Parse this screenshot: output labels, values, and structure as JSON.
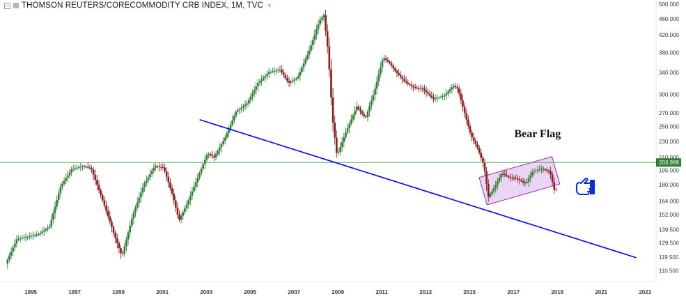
{
  "header": {
    "title": "THOMSON REUTERS/CORECOMMODITY CRB INDEX, 1M, TVC",
    "collapse_icon": "minus-square-icon",
    "visibility_icon": "eye-square-icon",
    "menu_icon": "chevron-down-icon"
  },
  "colors": {
    "up": "#2e7d32",
    "down": "#8b1a1a",
    "trendline": "#0000ff",
    "horizontal_line": "#4caf50",
    "flag_fill": "#e3c7f2",
    "flag_border": "#9c27b0",
    "price_label_bg": "#2e7d32"
  },
  "chart_data": {
    "type": "candlestick",
    "title": "THOMSON REUTERS/CORECOMMODITY CRB INDEX, 1M, TVC",
    "interval": "1M",
    "y_scale": "log",
    "ylim": [
      104,
      500
    ],
    "xlim": [
      1993.7,
      2023.6
    ],
    "y_ticks": [
      "500.000",
      "460.000",
      "420.000",
      "380.000",
      "340.000",
      "300.000",
      "270.000",
      "250.000",
      "230.000",
      "210.000",
      "195.000",
      "180.000",
      "164.000",
      "152.000",
      "139.500",
      "129.500",
      "119.500",
      "110.500"
    ],
    "x_ticks": [
      "1995",
      "1997",
      "1999",
      "2001",
      "2003",
      "2005",
      "2007",
      "2009",
      "2011",
      "2013",
      "2015",
      "2017",
      "2019",
      "2021",
      "2023"
    ],
    "anchors": [
      [
        1994.0,
        115
      ],
      [
        1994.5,
        132
      ],
      [
        1995.0,
        134
      ],
      [
        1995.5,
        136
      ],
      [
        1996.0,
        142
      ],
      [
        1996.5,
        178
      ],
      [
        1997.0,
        196
      ],
      [
        1997.5,
        200
      ],
      [
        1997.9,
        197
      ],
      [
        1998.5,
        160
      ],
      [
        1999.0,
        133
      ],
      [
        1999.3,
        120
      ],
      [
        1999.8,
        152
      ],
      [
        2000.3,
        180
      ],
      [
        2000.8,
        200
      ],
      [
        2001.2,
        198
      ],
      [
        2001.6,
        170
      ],
      [
        2001.9,
        147
      ],
      [
        2002.3,
        163
      ],
      [
        2002.8,
        190
      ],
      [
        2003.2,
        215
      ],
      [
        2003.5,
        210
      ],
      [
        2004.0,
        235
      ],
      [
        2004.5,
        272
      ],
      [
        2005.0,
        285
      ],
      [
        2005.5,
        320
      ],
      [
        2006.0,
        340
      ],
      [
        2006.5,
        345
      ],
      [
        2006.9,
        320
      ],
      [
        2007.3,
        330
      ],
      [
        2007.8,
        380
      ],
      [
        2008.3,
        455
      ],
      [
        2008.5,
        470
      ],
      [
        2008.7,
        380
      ],
      [
        2008.9,
        260
      ],
      [
        2009.1,
        212
      ],
      [
        2009.5,
        242
      ],
      [
        2010.0,
        280
      ],
      [
        2010.4,
        262
      ],
      [
        2010.8,
        305
      ],
      [
        2011.2,
        370
      ],
      [
        2011.5,
        358
      ],
      [
        2011.8,
        340
      ],
      [
        2012.2,
        322
      ],
      [
        2012.6,
        312
      ],
      [
        2013.0,
        310
      ],
      [
        2013.5,
        292
      ],
      [
        2014.0,
        298
      ],
      [
        2014.4,
        315
      ],
      [
        2014.6,
        310
      ],
      [
        2014.9,
        272
      ],
      [
        2015.2,
        238
      ],
      [
        2015.5,
        222
      ],
      [
        2015.8,
        200
      ],
      [
        2016.0,
        168
      ],
      [
        2016.3,
        178
      ],
      [
        2016.6,
        192
      ],
      [
        2016.9,
        188
      ],
      [
        2017.3,
        186
      ],
      [
        2017.7,
        181
      ],
      [
        2018.0,
        193
      ],
      [
        2018.4,
        197
      ],
      [
        2018.8,
        194
      ],
      [
        2019.0,
        175
      ]
    ],
    "horizontal_line": {
      "price": 203.999,
      "label": "203.999"
    },
    "trendline": {
      "from": [
        2002.8,
        260
      ],
      "to": [
        2022.7,
        119
      ]
    },
    "flag_channel": {
      "label": "Bear Flag",
      "label_anchor": [
        2018.2,
        240
      ]
    },
    "pointer_annotation": "pointing-hand-icon"
  }
}
